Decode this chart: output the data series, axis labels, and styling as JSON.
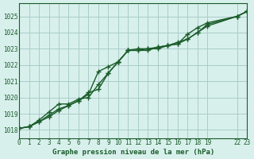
{
  "title": "Graphe pression niveau de la mer (hPa)",
  "bg_color": "#d8f0ec",
  "grid_color": "#aaccc8",
  "line_color": "#1a5c2a",
  "xlim": [
    0,
    23
  ],
  "ylim": [
    1017.5,
    1025.8
  ],
  "yticks": [
    1018,
    1019,
    1020,
    1021,
    1022,
    1023,
    1024,
    1025
  ],
  "xticks": [
    0,
    1,
    2,
    3,
    4,
    5,
    6,
    7,
    8,
    9,
    10,
    11,
    12,
    13,
    14,
    15,
    16,
    17,
    18,
    19,
    22,
    23
  ],
  "xtick_labels": [
    "0",
    "1",
    "2",
    "3",
    "4",
    "5",
    "6",
    "7",
    "8",
    "9",
    "10",
    "11",
    "12",
    "13",
    "14",
    "15",
    "16",
    "17",
    "18",
    "19",
    "22",
    "23"
  ],
  "series1": {
    "x": [
      0,
      1,
      2,
      3,
      4,
      5,
      6,
      7,
      8,
      9,
      10,
      11,
      12,
      13,
      14,
      15,
      16,
      17,
      18,
      19,
      22,
      23
    ],
    "y": [
      1018.1,
      1018.2,
      1018.5,
      1018.8,
      1019.2,
      1019.5,
      1019.8,
      1020.3,
      1020.5,
      1021.5,
      1022.2,
      1022.9,
      1023.0,
      1023.0,
      1023.1,
      1023.2,
      1023.4,
      1023.6,
      1024.0,
      1024.5,
      1025.0,
      1025.3
    ]
  },
  "series2": {
    "x": [
      0,
      1,
      2,
      3,
      4,
      5,
      6,
      7,
      8,
      9,
      10,
      11,
      12,
      13,
      14,
      15,
      16,
      17,
      18,
      19,
      22,
      23
    ],
    "y": [
      1018.1,
      1018.2,
      1018.6,
      1019.1,
      1019.6,
      1019.6,
      1019.9,
      1020.0,
      1020.8,
      1021.5,
      1022.2,
      1022.9,
      1022.9,
      1023.0,
      1023.0,
      1023.2,
      1023.3,
      1023.9,
      1024.3,
      1024.6,
      1025.0,
      1025.3
    ]
  },
  "series3": {
    "x": [
      0,
      1,
      2,
      3,
      4,
      5,
      6,
      7,
      8,
      9,
      10,
      11,
      12,
      13,
      14,
      15,
      16,
      17,
      18,
      19,
      22,
      23
    ],
    "y": [
      1018.1,
      1018.2,
      1018.5,
      1018.9,
      1019.3,
      1019.5,
      1019.8,
      1020.2,
      1021.6,
      1021.9,
      1022.2,
      1022.9,
      1022.9,
      1022.9,
      1023.1,
      1023.2,
      1023.3,
      1023.6,
      1024.0,
      1024.4,
      1025.0,
      1025.3
    ]
  }
}
